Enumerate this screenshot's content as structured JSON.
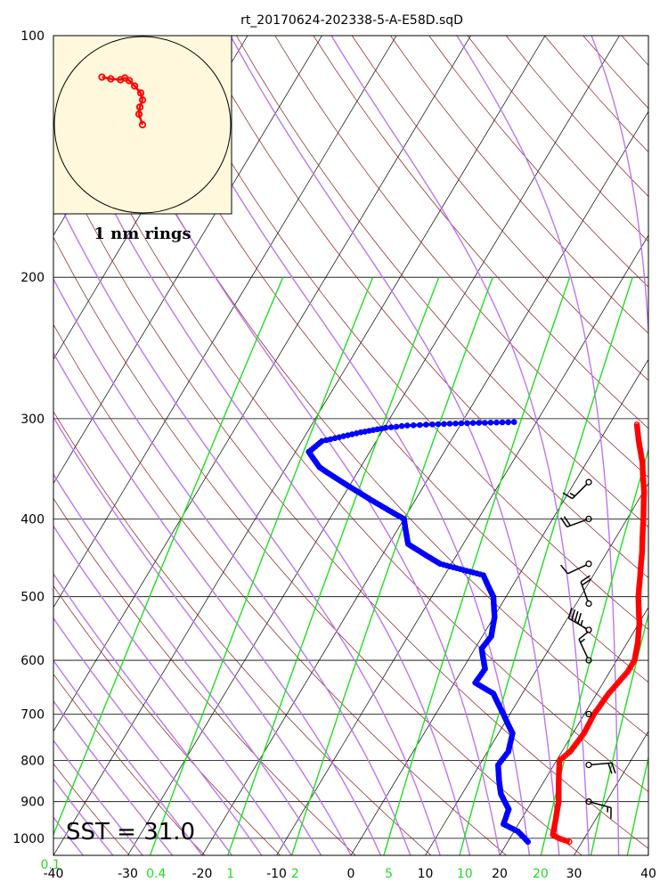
{
  "title": "rt_20170624-202338-5-A-E58D.sqD",
  "sst_label": "SST = 31.0",
  "inset_label": "1 nm rings",
  "chart_data": {
    "type": "skew-t",
    "title": "rt_20170624-202338-5-A-E58D.sqD",
    "pressure_ticks": [
      100,
      200,
      300,
      400,
      500,
      600,
      700,
      800,
      900,
      1000
    ],
    "temp_ticks": [
      -40,
      -30,
      -20,
      -10,
      0,
      10,
      20,
      30,
      40
    ],
    "xlim": [
      -40,
      40
    ],
    "ylim": [
      1050,
      100
    ],
    "mixing_ratio_labels": [
      {
        "value": "0.1",
        "x_at_bottom": -40.4
      },
      {
        "value": "0.4",
        "x_at_bottom": -26.2
      },
      {
        "value": "1",
        "x_at_bottom": -16.2
      },
      {
        "value": "2",
        "x_at_bottom": -7.5
      },
      {
        "value": "5",
        "x_at_bottom": 5.1
      },
      {
        "value": "10",
        "x_at_bottom": 15.3
      },
      {
        "value": "20",
        "x_at_bottom": 25.5
      }
    ],
    "mixing_ratio_lines_gkg": [
      0.1,
      0.4,
      1,
      2,
      5,
      10,
      20,
      30,
      40
    ],
    "colors": {
      "temperature": "#ff0000",
      "dewpoint": "#0000ff",
      "dry_adiabat": "#8b1a1a",
      "moist_adiabat": "#bb77ee",
      "mixing_ratio": "#22dd22",
      "isotherm": "#000000",
      "inset_background": "#fff8dc"
    },
    "temperature": [
      {
        "p": 1010,
        "t": 28.3
      },
      {
        "p": 1000,
        "t": 26.6
      },
      {
        "p": 990,
        "t": 25.5
      },
      {
        "p": 950,
        "t": 24.7
      },
      {
        "p": 900,
        "t": 23.6
      },
      {
        "p": 850,
        "t": 22.0
      },
      {
        "p": 800,
        "t": 20.4
      },
      {
        "p": 780,
        "t": 21.1
      },
      {
        "p": 740,
        "t": 21.5
      },
      {
        "p": 700,
        "t": 21.3
      },
      {
        "p": 660,
        "t": 21.6
      },
      {
        "p": 620,
        "t": 22.4
      },
      {
        "p": 600,
        "t": 22.4
      },
      {
        "p": 570,
        "t": 21.4
      },
      {
        "p": 540,
        "t": 20.1
      },
      {
        "p": 500,
        "t": 17.8
      },
      {
        "p": 470,
        "t": 16.3
      },
      {
        "p": 440,
        "t": 14.7
      },
      {
        "p": 400,
        "t": 12.2
      },
      {
        "p": 370,
        "t": 10.1
      },
      {
        "p": 340,
        "t": 7.5
      },
      {
        "p": 320,
        "t": 5.3
      },
      {
        "p": 305,
        "t": 3.7
      }
    ],
    "dewpoint": [
      {
        "p": 1010,
        "t": 22.7
      },
      {
        "p": 1000,
        "t": 22.0
      },
      {
        "p": 980,
        "t": 20.5
      },
      {
        "p": 960,
        "t": 18.0
      },
      {
        "p": 920,
        "t": 17.5
      },
      {
        "p": 880,
        "t": 15.2
      },
      {
        "p": 850,
        "t": 14.0
      },
      {
        "p": 810,
        "t": 12.5
      },
      {
        "p": 780,
        "t": 12.8
      },
      {
        "p": 740,
        "t": 11.9
      },
      {
        "p": 700,
        "t": 9.1
      },
      {
        "p": 660,
        "t": 6.1
      },
      {
        "p": 640,
        "t": 2.8
      },
      {
        "p": 615,
        "t": 3.0
      },
      {
        "p": 580,
        "t": 0.9
      },
      {
        "p": 560,
        "t": 1.2
      },
      {
        "p": 530,
        "t": 0.1
      },
      {
        "p": 500,
        "t": -1.7
      },
      {
        "p": 470,
        "t": -4.8
      },
      {
        "p": 455,
        "t": -11.5
      },
      {
        "p": 430,
        "t": -17.4
      },
      {
        "p": 400,
        "t": -20.0
      },
      {
        "p": 370,
        "t": -28.4
      },
      {
        "p": 345,
        "t": -35.5
      },
      {
        "p": 330,
        "t": -38.2
      },
      {
        "p": 320,
        "t": -37.3
      },
      {
        "p": 312,
        "t": -32.8
      },
      {
        "p": 308,
        "t": -29.8
      },
      {
        "p": 306,
        "t": -27.1
      },
      {
        "p": 305,
        "t": -23.8
      },
      {
        "p": 304,
        "t": -20.0
      },
      {
        "p": 303,
        "t": -13.0
      }
    ],
    "wind_barbs": [
      {
        "p": 360,
        "dir": 225,
        "speed_kt": 15
      },
      {
        "p": 400,
        "dir": 250,
        "speed_kt": 20
      },
      {
        "p": 455,
        "dir": 245,
        "speed_kt": 10
      },
      {
        "p": 510,
        "dir": 340,
        "speed_kt": 20
      },
      {
        "p": 550,
        "dir": 300,
        "speed_kt": 45
      },
      {
        "p": 600,
        "dir": 335,
        "speed_kt": 15
      },
      {
        "p": 700,
        "dir": 0,
        "speed_kt": 0
      },
      {
        "p": 810,
        "dir": 85,
        "speed_kt": 20
      },
      {
        "p": 900,
        "dir": 105,
        "speed_kt": 15
      }
    ],
    "drift_track": [
      {
        "east_nm": -0.46,
        "north_nm": 0.54
      },
      {
        "east_nm": -0.36,
        "north_nm": 0.52
      },
      {
        "east_nm": -0.25,
        "north_nm": 0.51
      },
      {
        "east_nm": -0.2,
        "north_nm": 0.53
      },
      {
        "east_nm": -0.15,
        "north_nm": 0.5
      },
      {
        "east_nm": -0.09,
        "north_nm": 0.44
      },
      {
        "east_nm": -0.02,
        "north_nm": 0.36
      },
      {
        "east_nm": 0.0,
        "north_nm": 0.28
      },
      {
        "east_nm": -0.03,
        "north_nm": 0.2
      },
      {
        "east_nm": -0.04,
        "north_nm": 0.12
      },
      {
        "east_nm": 0.0,
        "north_nm": 0.0
      }
    ]
  }
}
